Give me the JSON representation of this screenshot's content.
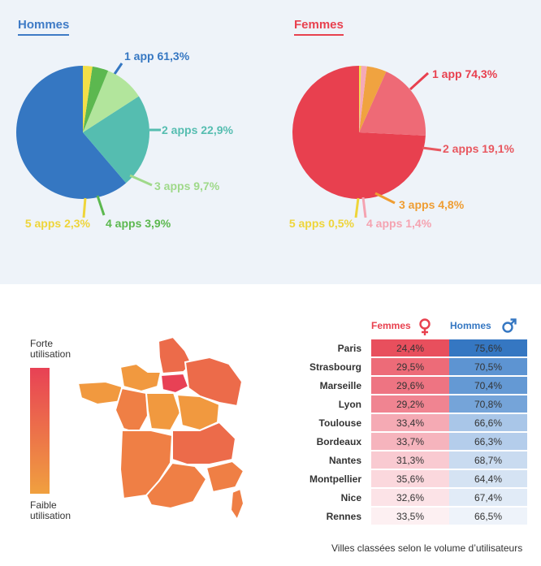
{
  "pies": [
    {
      "title": "Hommes",
      "title_color": "#3f7bc6",
      "slices": [
        {
          "label": "1 app 61,3%",
          "value": 61.3,
          "color": "#3577c2",
          "label_color": "#3577c2"
        },
        {
          "label": "2 apps 22,9%",
          "value": 22.9,
          "color": "#55bdb0",
          "label_color": "#55bdb0"
        },
        {
          "label": "3 apps 9,7%",
          "value": 9.7,
          "color": "#b2e59c",
          "label_color": "#9fd98a"
        },
        {
          "label": "4 apps 3,9%",
          "value": 3.9,
          "color": "#5cb84f",
          "label_color": "#5cb84f"
        },
        {
          "label": "5 apps 2,3%",
          "value": 2.3,
          "color": "#f2df48",
          "label_color": "#eed53a"
        }
      ]
    },
    {
      "title": "Femmes",
      "title_color": "#e8414f",
      "slices": [
        {
          "label": "1 app 74,3%",
          "value": 74.3,
          "color": "#e8404f",
          "label_color": "#e8404f"
        },
        {
          "label": "2 apps 19,1%",
          "value": 19.1,
          "color": "#ee6a76",
          "label_color": "#e8575f"
        },
        {
          "label": "3 apps 4,8%",
          "value": 4.8,
          "color": "#f0a340",
          "label_color": "#ef9d32"
        },
        {
          "label": "4 apps 1,4%",
          "value": 1.4,
          "color": "#f5a9b8",
          "label_color": "#f5a3b1"
        },
        {
          "label": "5 apps 0,5%",
          "value": 0.5,
          "color": "#f2df48",
          "label_color": "#eed53a"
        }
      ]
    }
  ],
  "legend": {
    "high": "Forte utilisation",
    "low": "Faible utilisation",
    "high_color": "#e84155",
    "low_color": "#f0a03f"
  },
  "table": {
    "femmes_header": "Femmes",
    "hommes_header": "Hommes",
    "femmes_color": "#e8414f",
    "hommes_color": "#3577c2",
    "female_icon": "female-symbol-icon",
    "male_icon": "male-symbol-icon",
    "rows": [
      {
        "city": "Paris",
        "f": "24,4%",
        "h": "75,6%",
        "fc": "#e84f5d",
        "hc": "#3577c2"
      },
      {
        "city": "Strasbourg",
        "f": "29,5%",
        "h": "70,5%",
        "fc": "#ed6b78",
        "hc": "#5d94d2"
      },
      {
        "city": "Marseille",
        "f": "29,6%",
        "h": "70,4%",
        "fc": "#ee7482",
        "hc": "#6499d4"
      },
      {
        "city": "Lyon",
        "f": "29,2%",
        "h": "70,8%",
        "fc": "#f08491",
        "hc": "#75a4d9"
      },
      {
        "city": "Toulouse",
        "f": "33,4%",
        "h": "66,6%",
        "fc": "#f5aab4",
        "hc": "#a9c6e8"
      },
      {
        "city": "Bordeaux",
        "f": "33,7%",
        "h": "66,3%",
        "fc": "#f6b4bd",
        "hc": "#b4cdeb"
      },
      {
        "city": "Nantes",
        "f": "31,3%",
        "h": "68,7%",
        "fc": "#f9cad1",
        "hc": "#c9dbf0"
      },
      {
        "city": "Montpellier",
        "f": "35,6%",
        "h": "64,4%",
        "fc": "#fbd8dd",
        "hc": "#d5e3f3"
      },
      {
        "city": "Nice",
        "f": "32,6%",
        "h": "67,4%",
        "fc": "#fce3e7",
        "hc": "#e1ebf7"
      },
      {
        "city": "Rennes",
        "f": "33,5%",
        "h": "66,5%",
        "fc": "#fdf0f2",
        "hc": "#eef3fa"
      }
    ],
    "caption": "Villes classées selon le volume d’utilisateurs"
  },
  "map": {
    "colors": {
      "paris": "#e84155",
      "high": "#ec6b4a",
      "mid": "#ef7f45",
      "low": "#f1993f"
    }
  },
  "chart_data": [
    {
      "type": "pie",
      "title": "Hommes",
      "categories": [
        "1 app",
        "2 apps",
        "3 apps",
        "4 apps",
        "5 apps"
      ],
      "values": [
        61.3,
        22.9,
        9.7,
        3.9,
        2.3
      ]
    },
    {
      "type": "pie",
      "title": "Femmes",
      "categories": [
        "1 app",
        "2 apps",
        "3 apps",
        "4 apps",
        "5 apps"
      ],
      "values": [
        74.3,
        19.1,
        4.8,
        1.4,
        0.5
      ]
    },
    {
      "type": "table",
      "columns": [
        "Femmes",
        "Hommes"
      ],
      "rows": [
        "Paris",
        "Strasbourg",
        "Marseille",
        "Lyon",
        "Toulouse",
        "Bordeaux",
        "Nantes",
        "Montpellier",
        "Nice",
        "Rennes"
      ],
      "femmes": [
        "24,4%",
        "29,5%",
        "29,6%",
        "29,2%",
        "33,4%",
        "33,7%",
        "31,3%",
        "35,6%",
        "32,6%",
        "33,5%"
      ],
      "hommes": [
        "75,6%",
        "70,5%",
        "70,4%",
        "70,8%",
        "66,6%",
        "66,3%",
        "68,7%",
        "64,4%",
        "67,4%",
        "66,5%"
      ]
    }
  ]
}
